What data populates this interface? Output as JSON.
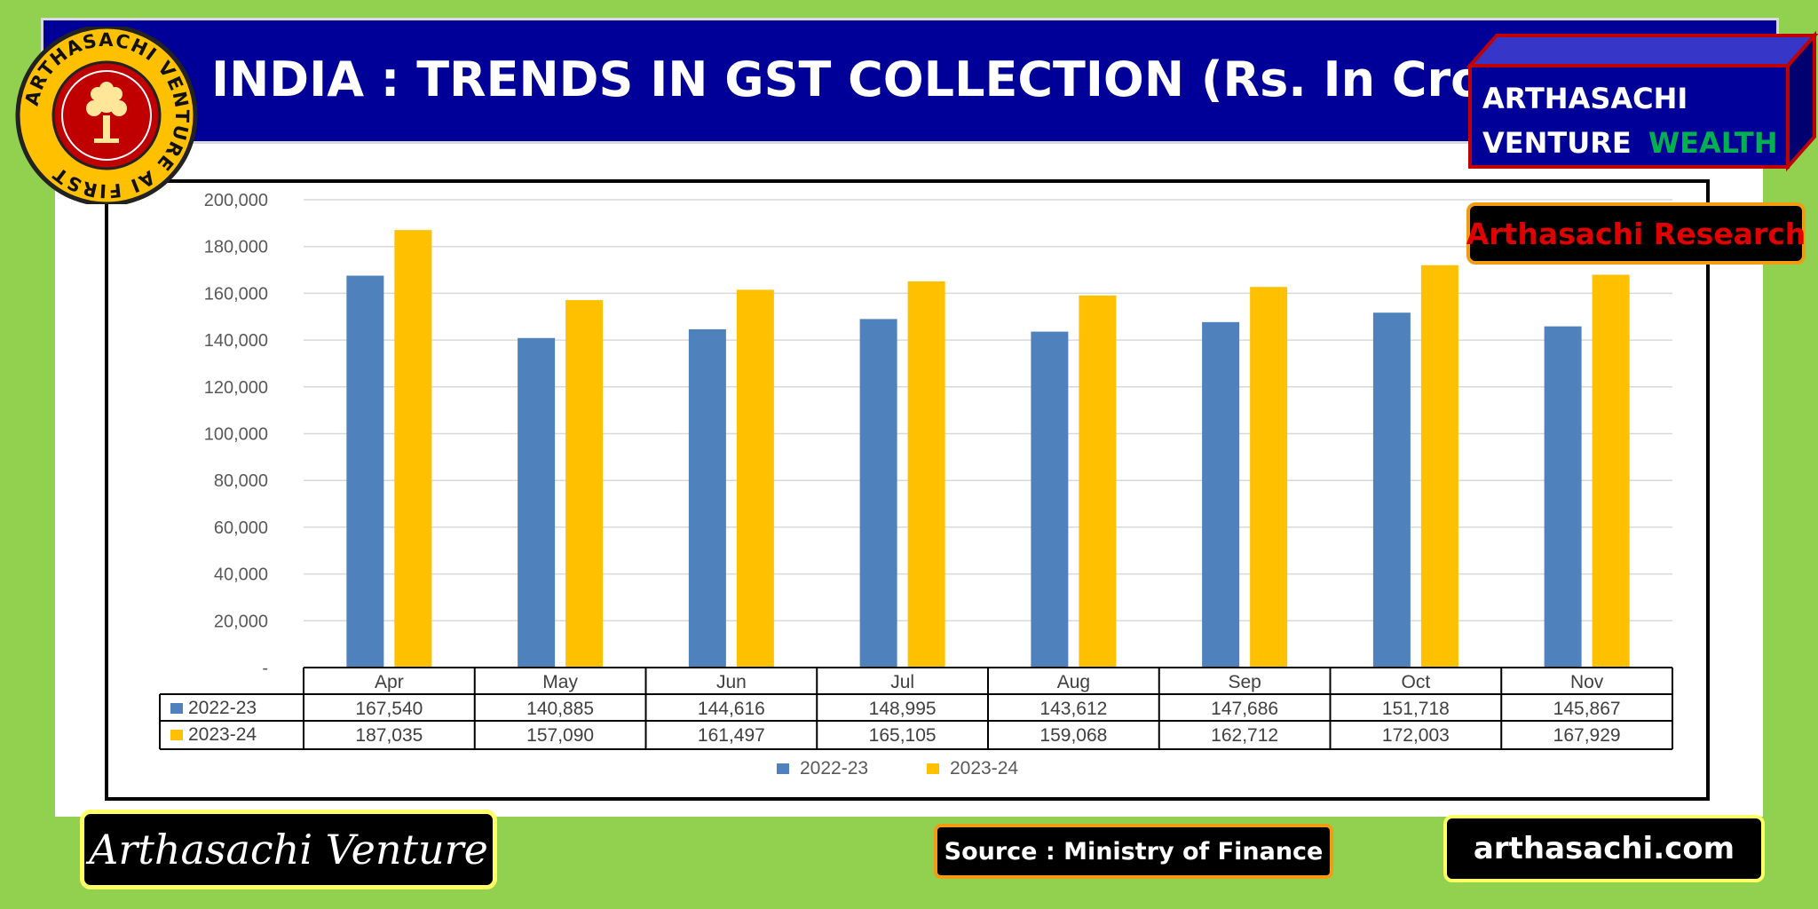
{
  "header": {
    "title": "INDIA : TRENDS IN GST COLLECTION (Rs. In Crore)"
  },
  "logo": {
    "ring_text": "ARTHASACHI VENTURE AI FIRST",
    "icon": "tree-icon"
  },
  "brand": {
    "line1": "ARTHASACHI",
    "line2a": "VENTURE",
    "line2b": "WEALTH"
  },
  "badges": {
    "research": "Arthasachi Research",
    "venture": "Arthasachi Venture",
    "source": "Source :  Ministry of Finance",
    "site": "arthasachi.com"
  },
  "colors": {
    "series_2022": "#4f81bd",
    "series_2023": "#ffc000",
    "title_bar": "#000099",
    "background": "#92d050"
  },
  "chart_data": {
    "type": "bar",
    "title": "INDIA : TRENDS IN GST COLLECTION (Rs. In Crore)",
    "categories": [
      "Apr",
      "May",
      "Jun",
      "Jul",
      "Aug",
      "Sep",
      "Oct",
      "Nov"
    ],
    "series": [
      {
        "name": "2022-23",
        "values": [
          167540,
          140885,
          144616,
          148995,
          143612,
          147686,
          151718,
          145867
        ]
      },
      {
        "name": "2023-24",
        "values": [
          187035,
          157090,
          161497,
          165105,
          159068,
          162712,
          172003,
          167929
        ]
      }
    ],
    "yticks": [
      "-",
      "20,000",
      "40,000",
      "60,000",
      "80,000",
      "100,000",
      "120,000",
      "140,000",
      "160,000",
      "180,000",
      "200,000"
    ],
    "ylim": [
      0,
      200000
    ],
    "grid": true,
    "legend": "bottom",
    "data_table": {
      "rows": [
        [
          "167,540",
          "140,885",
          "144,616",
          "148,995",
          "143,612",
          "147,686",
          "151,718",
          "145,867"
        ],
        [
          "187,035",
          "157,090",
          "161,497",
          "165,105",
          "159,068",
          "162,712",
          "172,003",
          "167,929"
        ]
      ]
    }
  }
}
